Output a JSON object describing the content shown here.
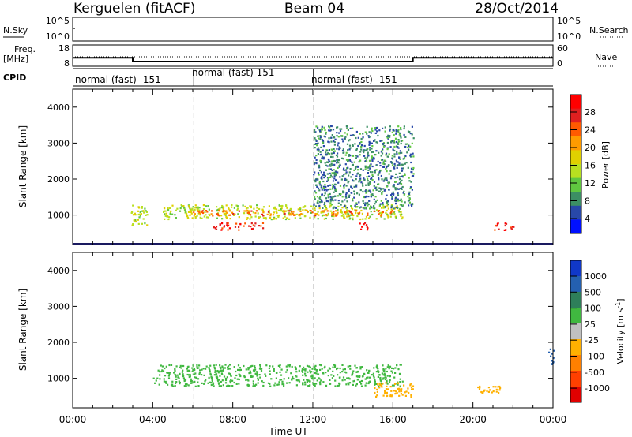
{
  "header": {
    "station": "Kerguelen (fitACF)",
    "beam": "Beam 04",
    "date": "28/Oct/2014"
  },
  "nsky_panel": {
    "left_label": "N.Sky",
    "right_label": "N.Search",
    "left_ticks": [
      "10^5",
      "10^0"
    ],
    "right_ticks": [
      "10^5",
      "10^0"
    ]
  },
  "freq_panel": {
    "left_label_line1": "Freq.",
    "left_label_line2": "[MHz]",
    "right_label": "Nave",
    "left_ticks": [
      "18",
      "8"
    ],
    "right_ticks": [
      "60",
      "0"
    ]
  },
  "cpid_panel": {
    "label": "CPID",
    "segments": [
      "normal (fast) -151",
      "normal (fast) 151",
      "normal (fast) -151"
    ]
  },
  "power_colorbar": {
    "title": "Power [dB]",
    "ticks": [
      "28",
      "24",
      "20",
      "16",
      "12",
      "8",
      "4"
    ],
    "colors": [
      "#ff0000",
      "#e02020",
      "#ff5a00",
      "#ff9b00",
      "#e0d000",
      "#b8e020",
      "#60c840",
      "#3c8f64",
      "#2848a8",
      "#0010ff"
    ]
  },
  "velocity_colorbar": {
    "title": "Velocity [m s^-1]",
    "title_main": "Velocity  [m s",
    "title_sup": "-1",
    "title_end": "]",
    "ticks": [
      "1000",
      "500",
      "100",
      "25",
      "-25",
      "-100",
      "-500",
      "-1000"
    ],
    "colors": [
      "#1038c8",
      "#2460b0",
      "#2e7f5a",
      "#40b840",
      "#c0c0c0",
      "#ffb000",
      "#ff8000",
      "#ff4000",
      "#e00000"
    ]
  },
  "time_axis": {
    "title": "Time UT",
    "ticks": [
      "00:00",
      "04:00",
      "08:00",
      "12:00",
      "16:00",
      "20:00",
      "00:00"
    ]
  },
  "range_axis": {
    "title": "Slant Range [km]",
    "ticks": [
      "1000",
      "2000",
      "3000",
      "4000"
    ]
  },
  "chart_data": {
    "type": "heatmap",
    "x_unit": "hours UT",
    "xlim": [
      0,
      24
    ],
    "ylim": [
      180,
      4500
    ],
    "cpid_changes_hours": [
      6.05,
      12.03
    ],
    "frequency_mhz": [
      {
        "start": 0,
        "end": 3.0,
        "value": 12.5
      },
      {
        "start": 3.0,
        "end": 17.0,
        "value": 10.5
      },
      {
        "start": 17.0,
        "end": 24,
        "value": 12.5
      }
    ],
    "nave_level": 30,
    "power_features": [
      {
        "x0": 2.9,
        "x1": 3.7,
        "y0": 700,
        "y1": 1300,
        "db": 14
      },
      {
        "x0": 4.5,
        "x1": 16.5,
        "y0": 900,
        "y1": 1300,
        "db": 14
      },
      {
        "x0": 6.0,
        "x1": 16.0,
        "y0": 1000,
        "y1": 1150,
        "db": 22
      },
      {
        "x0": 7.0,
        "x1": 9.5,
        "y0": 600,
        "y1": 800,
        "db": 26
      },
      {
        "x0": 14.2,
        "x1": 14.8,
        "y0": 600,
        "y1": 800,
        "db": 30
      },
      {
        "x0": 12.0,
        "x1": 17.0,
        "y0": 1200,
        "y1": 3500,
        "db": 6
      },
      {
        "x0": 21.0,
        "x1": 22.0,
        "y0": 600,
        "y1": 800,
        "db": 28
      }
    ],
    "velocity_features": [
      {
        "x0": 4.0,
        "x1": 16.5,
        "y0": 800,
        "y1": 1400,
        "v": 0
      },
      {
        "x0": 15.0,
        "x1": 17.0,
        "y0": 500,
        "y1": 900,
        "v": -300
      },
      {
        "x0": 20.0,
        "x1": 21.5,
        "y0": 600,
        "y1": 800,
        "v": -400
      },
      {
        "x0": 23.7,
        "x1": 24.0,
        "y0": 1400,
        "y1": 1900,
        "v": 120
      }
    ]
  }
}
